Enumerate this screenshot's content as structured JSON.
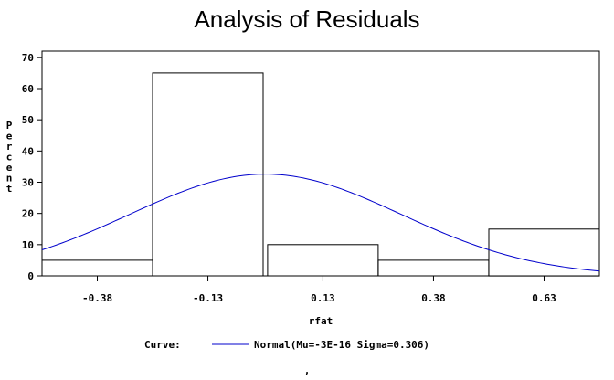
{
  "chart_data": {
    "type": "bar",
    "title": "Analysis of Residuals",
    "xlabel": "rfat",
    "ylabel": "Percent",
    "ylim": [
      0,
      72
    ],
    "xlim": [
      -0.505,
      0.755
    ],
    "bin_width": 0.25,
    "y_ticks": [
      0,
      10,
      20,
      30,
      40,
      50,
      60,
      70
    ],
    "x_ticks": [
      "-0.38",
      "-0.13",
      "0.13",
      "0.38",
      "0.63"
    ],
    "x_tick_values": [
      -0.38,
      -0.13,
      0.13,
      0.38,
      0.63
    ],
    "bins": [
      {
        "center": -0.38,
        "value": 5
      },
      {
        "center": -0.13,
        "value": 65
      },
      {
        "center": 0.13,
        "value": 10
      },
      {
        "center": 0.38,
        "value": 5
      },
      {
        "center": 0.63,
        "value": 15
      }
    ],
    "curve": {
      "type": "normal",
      "mu": 0.0,
      "sigma": 0.306,
      "color": "#0000cc",
      "legend_prefix": "Curve:",
      "legend_label": "Normal(Mu=-3E-16 Sigma=0.306)"
    },
    "grid": false,
    "legend_position": "bottom"
  },
  "footer_mark": ","
}
